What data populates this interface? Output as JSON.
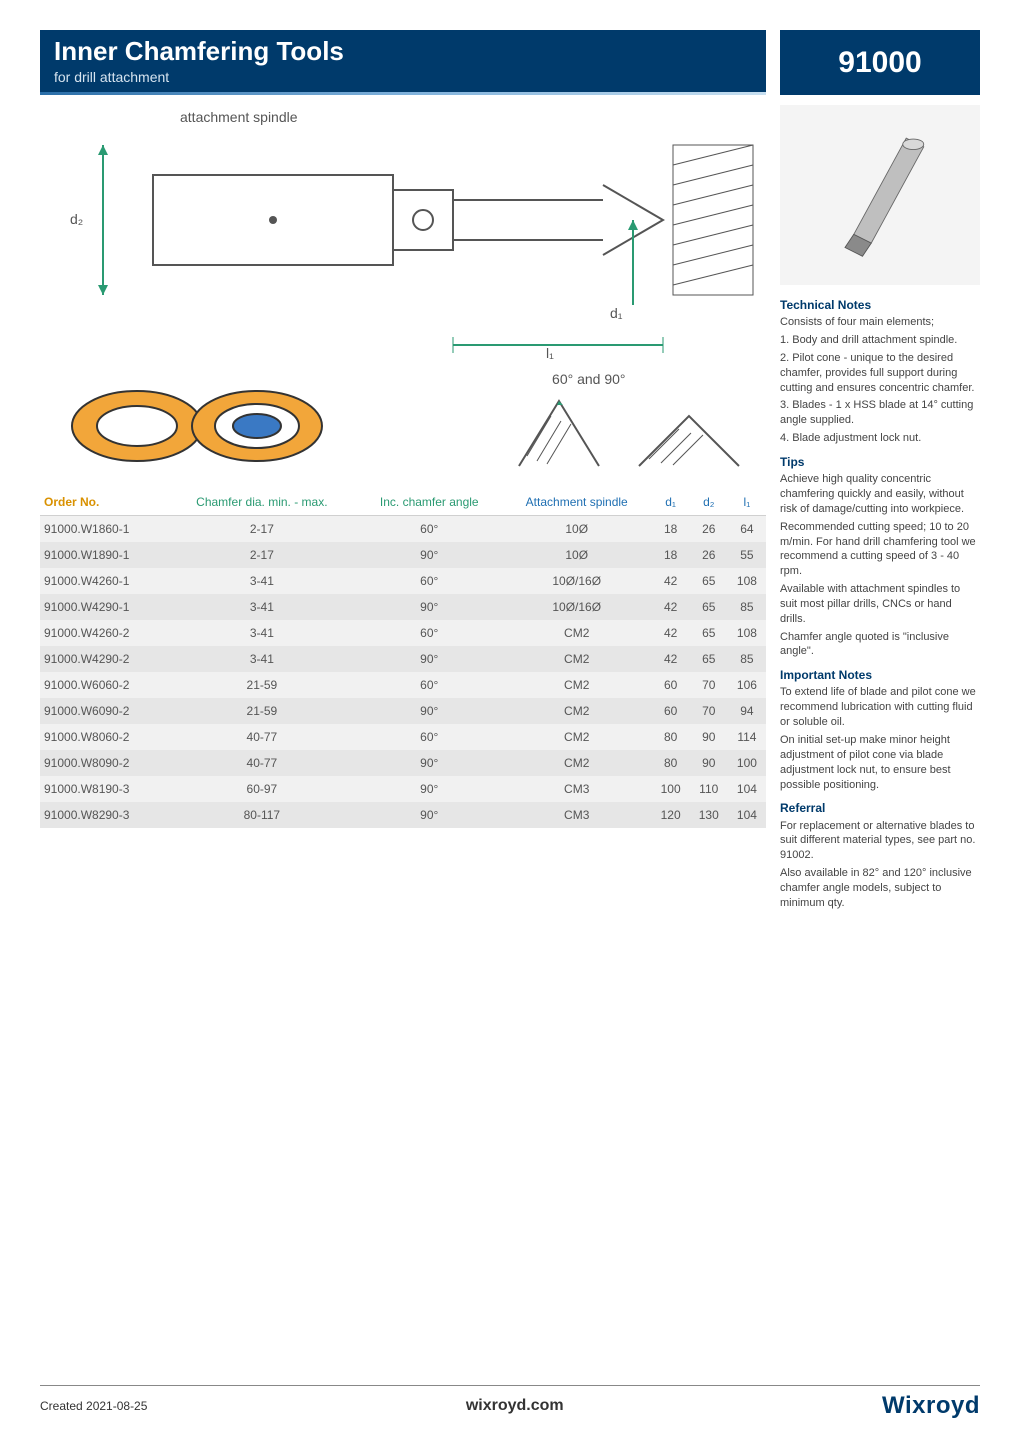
{
  "header": {
    "title": "Inner Chamfering Tools",
    "subtitle": "for drill attachment",
    "code": "91000"
  },
  "diagram": {
    "spindle_label": "attachment spindle",
    "d2_label": "d₂",
    "d1_label": "d₁",
    "l1_label": "l₁",
    "angle_label": "60° and 90°"
  },
  "table": {
    "columns": [
      "Order No.",
      "Chamfer dia. min. - max.",
      "Inc. chamfer angle",
      "Attachment spindle",
      "d₁",
      "d₂",
      "l₁"
    ],
    "header_colors": [
      "#d99100",
      "#2a9a72",
      "#2a9a72",
      "#1f6fb2",
      "#1f6fb2",
      "#1f6fb2",
      "#1f6fb2"
    ],
    "rows": [
      [
        "91000.W1860-1",
        "2-17",
        "60°",
        "10Ø",
        "18",
        "26",
        "64"
      ],
      [
        "91000.W1890-1",
        "2-17",
        "90°",
        "10Ø",
        "18",
        "26",
        "55"
      ],
      [
        "91000.W4260-1",
        "3-41",
        "60°",
        "10Ø/16Ø",
        "42",
        "65",
        "108"
      ],
      [
        "91000.W4290-1",
        "3-41",
        "90°",
        "10Ø/16Ø",
        "42",
        "65",
        "85"
      ],
      [
        "91000.W4260-2",
        "3-41",
        "60°",
        "CM2",
        "42",
        "65",
        "108"
      ],
      [
        "91000.W4290-2",
        "3-41",
        "90°",
        "CM2",
        "42",
        "65",
        "85"
      ],
      [
        "91000.W6060-2",
        "21-59",
        "60°",
        "CM2",
        "60",
        "70",
        "106"
      ],
      [
        "91000.W6090-2",
        "21-59",
        "90°",
        "CM2",
        "60",
        "70",
        "94"
      ],
      [
        "91000.W8060-2",
        "40-77",
        "60°",
        "CM2",
        "80",
        "90",
        "114"
      ],
      [
        "91000.W8090-2",
        "40-77",
        "90°",
        "CM2",
        "80",
        "90",
        "100"
      ],
      [
        "91000.W8190-3",
        "60-97",
        "90°",
        "CM3",
        "100",
        "110",
        "104"
      ],
      [
        "91000.W8290-3",
        "80-117",
        "90°",
        "CM3",
        "120",
        "130",
        "104"
      ]
    ],
    "row_bg_odd": "#f1f1f1",
    "row_bg_even": "#e6e6e6"
  },
  "sidebar": {
    "sections": [
      {
        "heading": "Technical Notes",
        "body": "Consists of four main elements;\n1. Body and drill attachment spindle.\n2. Pilot cone - unique to the desired chamfer, provides full support during cutting and ensures concentric chamfer.\n3. Blades - 1 x HSS blade at 14° cutting angle supplied.\n4. Blade adjustment lock nut."
      },
      {
        "heading": "Tips",
        "body": "Achieve high quality concentric chamfering quickly and easily, without risk of damage/cutting into workpiece.\nRecommended cutting speed; 10 to 20 m/min. For hand drill chamfering tool we recommend a cutting speed of 3 - 40 rpm.\nAvailable with attachment spindles to suit most pillar drills, CNCs or hand drills.\nChamfer angle quoted is \"inclusive angle\"."
      },
      {
        "heading": "Important Notes",
        "body": "To extend life of blade and pilot cone we recommend lubrication with cutting fluid or soluble oil.\nOn initial set-up make minor height adjustment of pilot cone via blade adjustment lock nut, to ensure best possible positioning."
      },
      {
        "heading": "Referral",
        "body": "For replacement or alternative blades to suit different material types, see part no. 91002.\nAlso available in 82° and 120° inclusive chamfer angle models, subject to minimum qty."
      }
    ]
  },
  "footer": {
    "created": "Created 2021-08-25",
    "site": "wixroyd.com",
    "brand": "Wixroyd"
  },
  "colors": {
    "primary": "#003a6b",
    "accent_orange": "#d99100",
    "accent_green": "#2a9a72",
    "accent_blue": "#1f6fb2"
  }
}
